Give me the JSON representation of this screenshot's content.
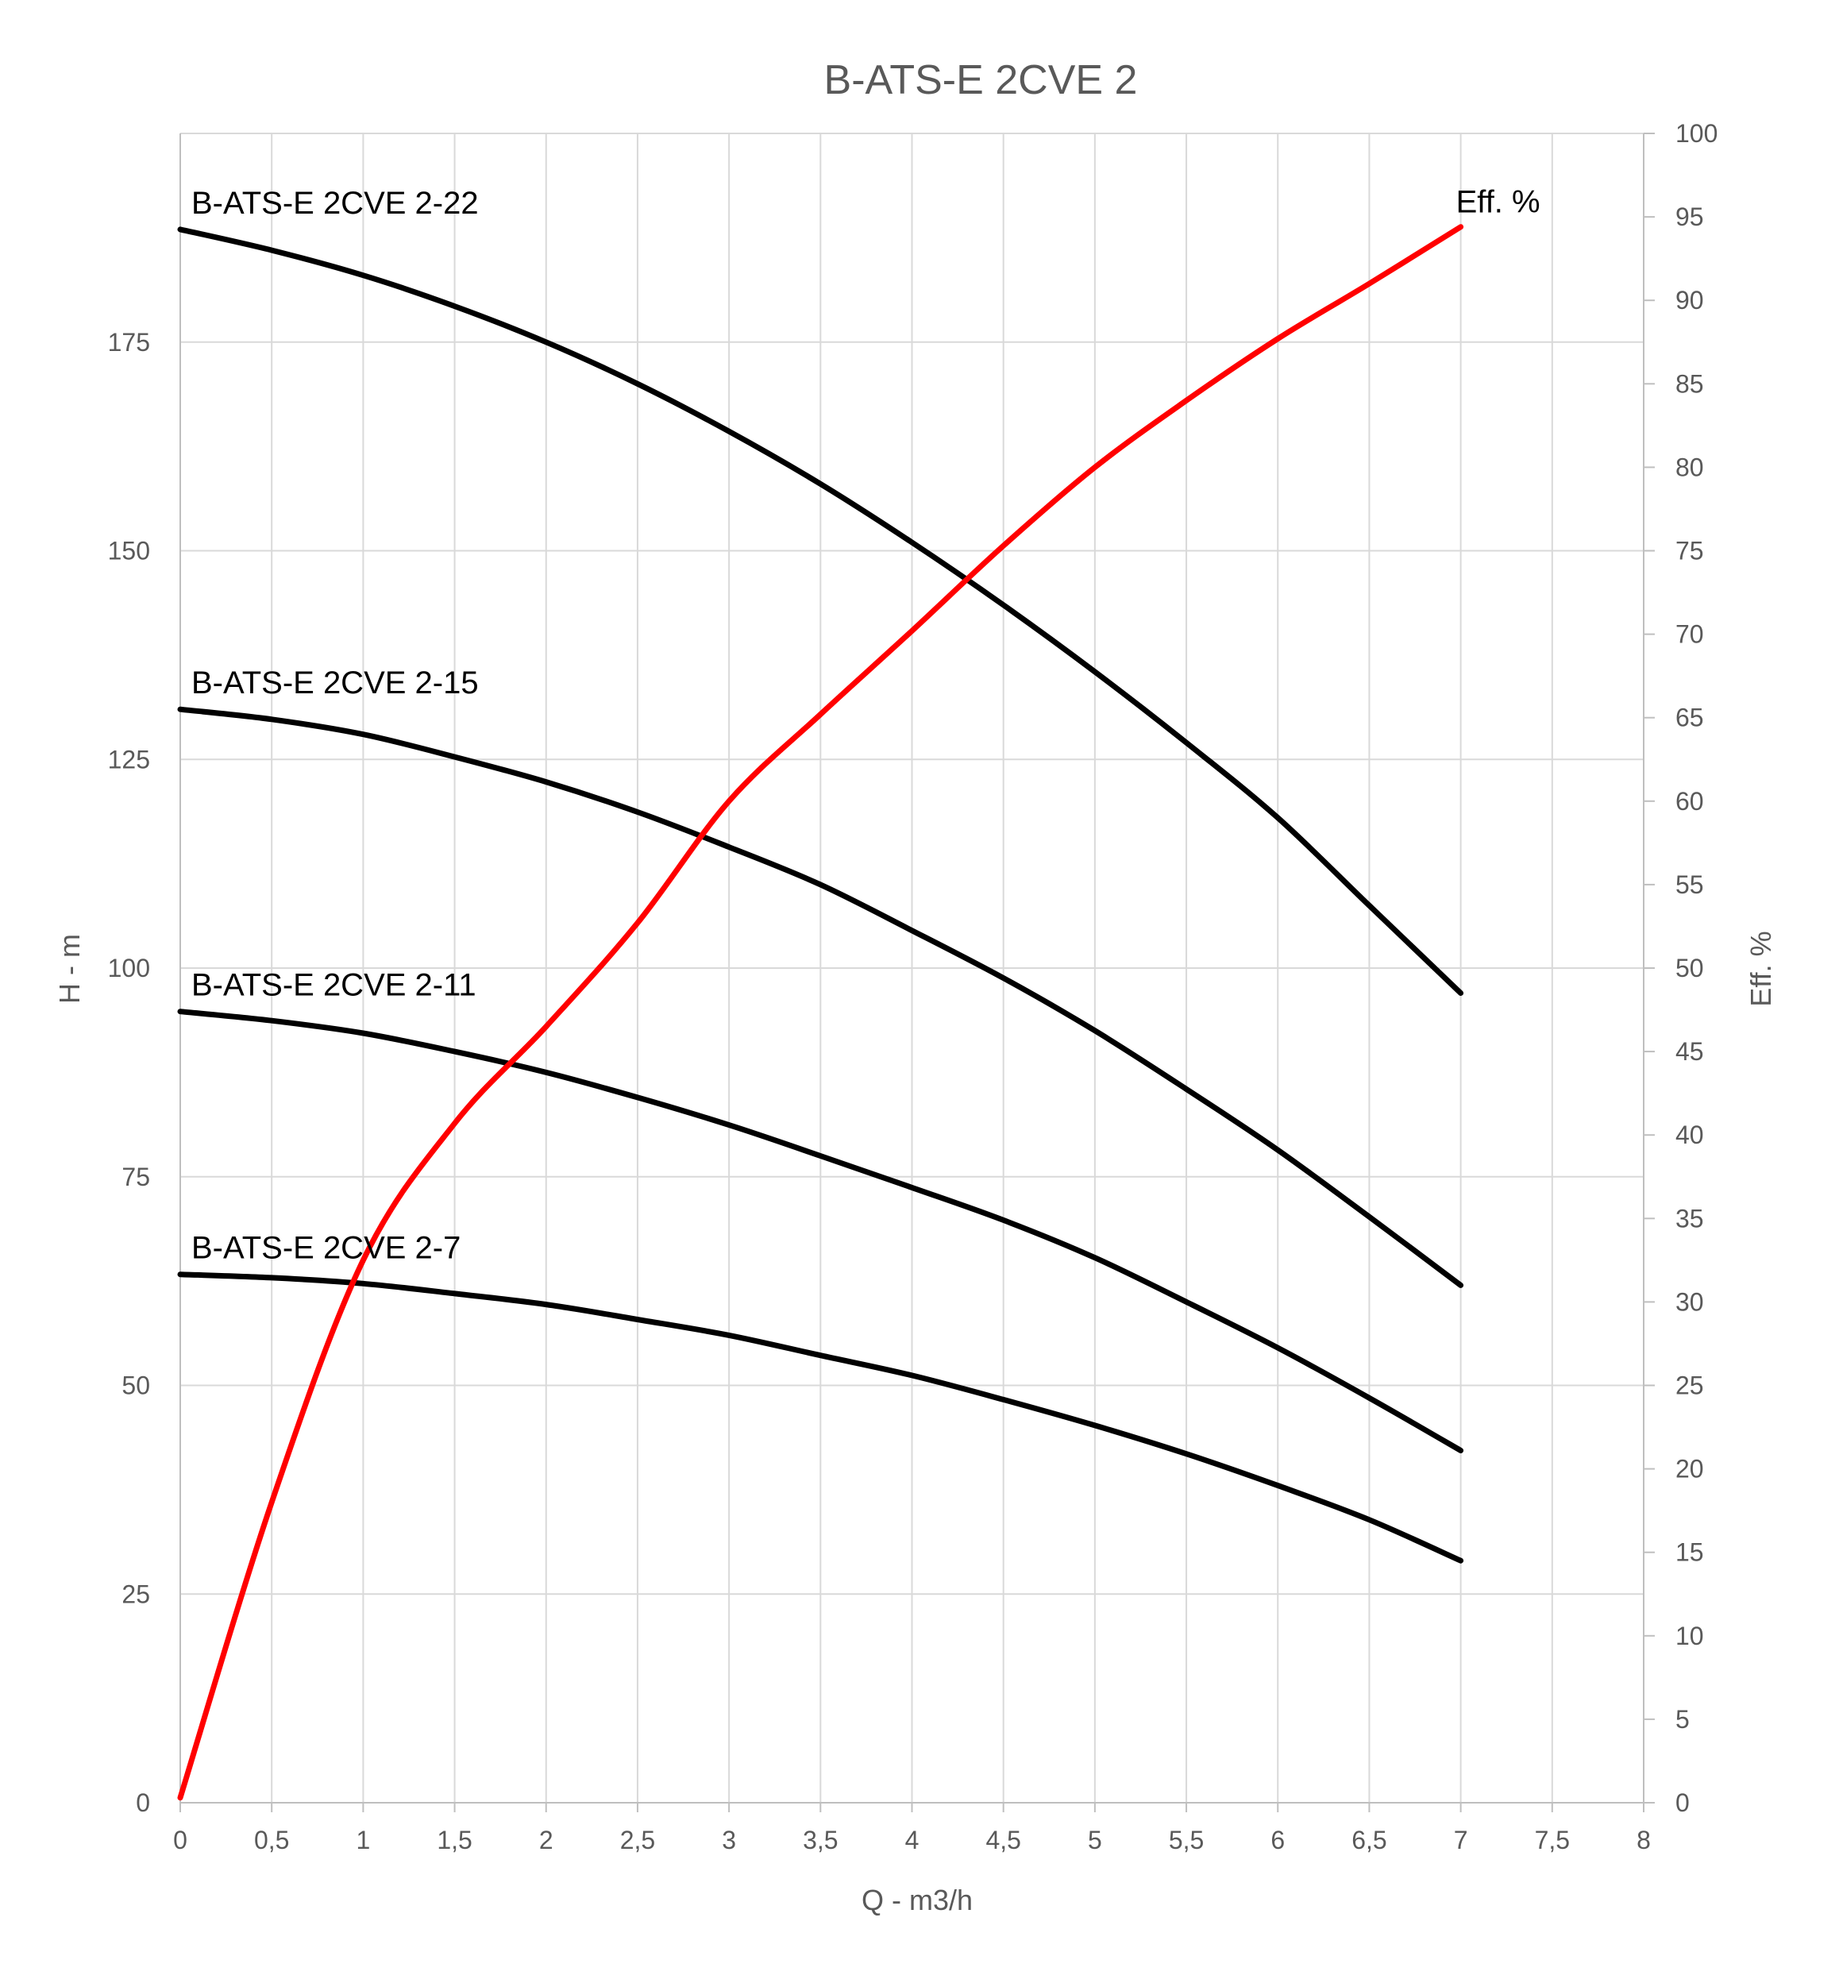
{
  "chart_data": {
    "type": "line",
    "title": "B-ATS-E 2CVE 2",
    "xlabel": "Q - m3/h",
    "ylabel": "H - m",
    "y2label": "Eff. %",
    "xlim": [
      0,
      8
    ],
    "ylim": [
      0,
      200
    ],
    "y2lim": [
      0,
      100
    ],
    "grid": true,
    "legend": "none",
    "x_ticks": [
      0,
      0.5,
      1,
      1.5,
      2,
      2.5,
      3,
      3.5,
      4,
      4.5,
      5,
      5.5,
      6,
      6.5,
      7,
      7.5,
      8
    ],
    "x_tick_labels": [
      "0",
      "0,5",
      "1",
      "1,5",
      "2",
      "2,5",
      "3",
      "3,5",
      "4",
      "4,5",
      "5",
      "5,5",
      "6",
      "6,5",
      "7",
      "7,5",
      "8"
    ],
    "y_ticks": [
      0,
      25,
      50,
      75,
      100,
      125,
      150,
      175
    ],
    "y_tick_labels": [
      "0",
      "25",
      "50",
      "75",
      "100",
      "125",
      "150",
      "175"
    ],
    "y2_ticks": [
      0,
      5,
      10,
      15,
      20,
      25,
      30,
      35,
      40,
      45,
      50,
      55,
      60,
      65,
      70,
      75,
      80,
      85,
      90,
      95,
      100
    ],
    "y2_tick_labels": [
      "0",
      "5",
      "10",
      "15",
      "20",
      "25",
      "30",
      "35",
      "40",
      "45",
      "50",
      "55",
      "60",
      "65",
      "70",
      "75",
      "80",
      "85",
      "90",
      "95",
      "100"
    ],
    "x": [
      0,
      0.5,
      1,
      1.5,
      2,
      2.5,
      3,
      3.5,
      4,
      4.5,
      5,
      5.5,
      6,
      6.5,
      7
    ],
    "series": [
      {
        "name": "B-ATS-E 2CVE 2-22",
        "axis": "left",
        "color": "#000000",
        "values": [
          188.5,
          186,
          183,
          179.3,
          175,
          170,
          164.3,
          158,
          151,
          143.5,
          135.5,
          127,
          118,
          107.5,
          97
        ]
      },
      {
        "name": "B-ATS-E 2CVE 2-15",
        "axis": "left",
        "color": "#000000",
        "values": [
          131,
          129.8,
          128,
          125.3,
          122.3,
          118.7,
          114.5,
          110,
          104.5,
          98.8,
          92.5,
          85.5,
          78.2,
          70.2,
          62
        ]
      },
      {
        "name": "B-ATS-E 2CVE 2-11",
        "axis": "left",
        "color": "#000000",
        "values": [
          94.8,
          93.7,
          92.2,
          90,
          87.5,
          84.5,
          81.2,
          77.5,
          73.7,
          69.8,
          65.3,
          60,
          54.5,
          48.5,
          42.2
        ]
      },
      {
        "name": "B-ATS-E 2CVE 2-7",
        "axis": "left",
        "color": "#000000",
        "values": [
          63.3,
          62.9,
          62.2,
          61,
          59.7,
          57.9,
          56,
          53.6,
          51.2,
          48.3,
          45.2,
          41.8,
          38,
          33.9,
          29
        ]
      },
      {
        "name": "Eff. %",
        "axis": "right",
        "color": "#ff0000",
        "values": [
          0.3,
          18,
          32.5,
          40.7,
          46.5,
          52.7,
          60,
          65.2,
          70.2,
          75.3,
          80,
          84,
          87.7,
          91,
          94.4
        ]
      }
    ]
  }
}
